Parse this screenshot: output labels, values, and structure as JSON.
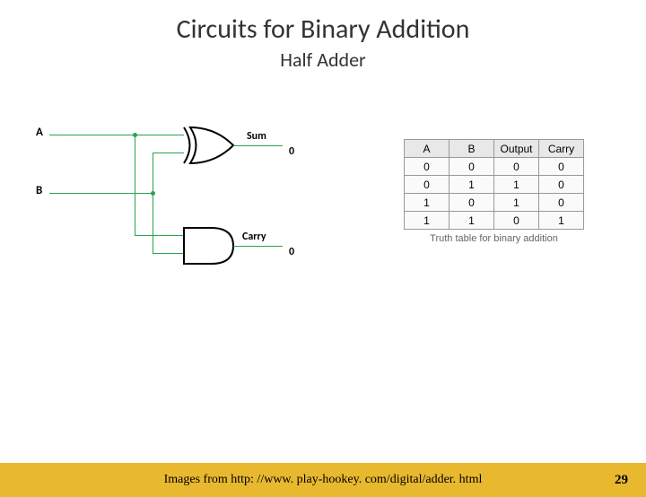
{
  "title": "Circuits for Binary Addition",
  "subtitle": "Half Adder",
  "circuit": {
    "input_a": "A",
    "input_b": "B",
    "output_sum_label": "Sum",
    "output_sum_value": "0",
    "output_carry_label": "Carry",
    "output_carry_value": "0",
    "wire_color": "#2aa34a",
    "gate_stroke": "#000000",
    "gate_fill": "#ffffff"
  },
  "truth_table": {
    "headers": [
      "A",
      "B",
      "Output",
      "Carry"
    ],
    "rows": [
      [
        "0",
        "0",
        "0",
        "0"
      ],
      [
        "0",
        "1",
        "1",
        "0"
      ],
      [
        "1",
        "0",
        "1",
        "0"
      ],
      [
        "1",
        "1",
        "0",
        "1"
      ]
    ],
    "caption": "Truth table for binary addition"
  },
  "footer": {
    "text": "Images from http: //www. play-hookey. com/digital/adder. html",
    "page": "29"
  }
}
